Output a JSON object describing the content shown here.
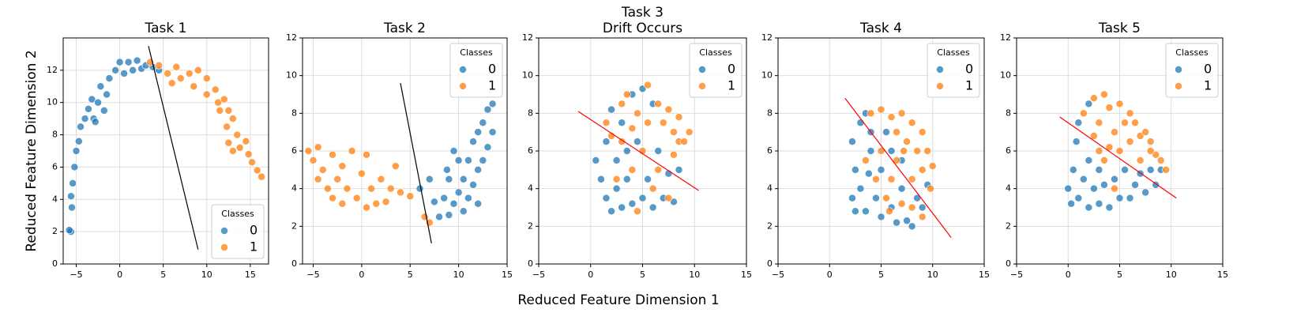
{
  "xlabel": "Reduced Feature Dimension 1",
  "ylabel": "Reduced Feature Dimension 2",
  "chart_data": [
    {
      "type": "scatter",
      "title": "Task 1",
      "legend_title": "Classes",
      "legend": "lower right",
      "grid": true,
      "xlim": [
        -6.5,
        17.1
      ],
      "ylim": [
        0,
        14
      ],
      "xticks": [
        {
          "value": -5,
          "label": "−5"
        },
        0,
        5,
        10,
        15
      ],
      "yticks": [
        0,
        2,
        4,
        6,
        8,
        10,
        12
      ],
      "series": [
        {
          "name": "0",
          "color": "#1f77b4",
          "x": [
            -5.6,
            -5.8,
            -5.5,
            -5.6,
            -5.4,
            -5.2,
            -5.0,
            -4.7,
            -4.5,
            -4.0,
            -3.6,
            -3.0,
            -3.2,
            -2.5,
            -2.2,
            -1.5,
            -1.2,
            -0.5,
            0,
            0.5,
            1,
            1.5,
            2,
            2.5,
            3,
            3.8,
            4.5,
            -2.8,
            -1.8
          ],
          "values": [
            2.0,
            2.1,
            3.5,
            4.2,
            5.0,
            6.0,
            7.0,
            7.6,
            8.5,
            9.0,
            9.6,
            9.0,
            10.2,
            10.0,
            11.0,
            10.5,
            11.5,
            12.0,
            12.5,
            11.8,
            12.5,
            12.0,
            12.6,
            12.1,
            12.3,
            12.2,
            12.0,
            8.8,
            9.5
          ]
        },
        {
          "name": "1",
          "color": "#ff7f0e",
          "x": [
            3.5,
            4.5,
            5.5,
            6.5,
            7,
            8,
            8.5,
            9,
            10,
            10,
            11,
            11.3,
            12,
            12.5,
            12.3,
            13,
            12.5,
            13.5,
            13.8,
            14.5,
            14.8,
            15.2,
            15.8,
            16.3,
            13,
            11.5,
            6
          ],
          "values": [
            12.5,
            12.3,
            11.8,
            12.2,
            11.5,
            11.8,
            11,
            12,
            11.5,
            10.5,
            10.8,
            10,
            10.2,
            9.5,
            8.5,
            9,
            7.5,
            8,
            7.2,
            7.6,
            6.8,
            6.3,
            5.8,
            5.4,
            7,
            9.5,
            11.2
          ]
        }
      ],
      "line": {
        "x": [
          3.3,
          9
        ],
        "values": [
          13.5,
          0.9
        ],
        "color": "#000000"
      }
    },
    {
      "type": "scatter",
      "title": "Task 2",
      "legend_title": "Classes",
      "legend": "upper right",
      "grid": true,
      "xlim": [
        -6.1,
        15
      ],
      "ylim": [
        0,
        12
      ],
      "xticks": [
        {
          "value": -5,
          "label": "−5"
        },
        0,
        5,
        10,
        15
      ],
      "yticks": [
        0,
        2,
        4,
        6,
        8,
        10,
        12
      ],
      "series": [
        {
          "name": "0",
          "color": "#1f77b4",
          "x": [
            7.5,
            8,
            8.5,
            9,
            9,
            9.5,
            10,
            10,
            10.5,
            10.5,
            11,
            11,
            11.5,
            11.5,
            12,
            12,
            12.5,
            12.5,
            13,
            13,
            13.5,
            13.5,
            9.5,
            8.8,
            6,
            7,
            12
          ],
          "values": [
            3.3,
            2.5,
            3.5,
            2.6,
            4.5,
            3.2,
            3.8,
            5.5,
            4.5,
            2.8,
            5.5,
            3.5,
            6.5,
            4.2,
            7,
            5.0,
            7.5,
            5.5,
            8.2,
            6.2,
            8.5,
            7.0,
            6,
            5,
            4,
            4.5,
            3.2
          ]
        },
        {
          "name": "1",
          "color": "#ff7f0e",
          "x": [
            -5.5,
            -5,
            -4.5,
            -4,
            -4.5,
            -3.5,
            -3,
            -3,
            -2.5,
            -2,
            -2,
            -1.5,
            -1,
            -0.5,
            0,
            0.5,
            0.5,
            1,
            1.5,
            2,
            2.5,
            3,
            3.5,
            4,
            5,
            6.5,
            7
          ],
          "values": [
            6.0,
            5.5,
            6.2,
            5.0,
            4.5,
            4.0,
            5.8,
            3.5,
            4.5,
            3.2,
            5.2,
            4.0,
            6.0,
            3.5,
            4.8,
            3.0,
            5.8,
            4.0,
            3.2,
            4.5,
            3.3,
            4.0,
            5.2,
            3.8,
            3.6,
            2.5,
            2.2
          ]
        }
      ],
      "line": {
        "x": [
          4,
          7.2
        ],
        "values": [
          9.6,
          1.1
        ],
        "color": "#000000"
      }
    },
    {
      "type": "scatter",
      "title": "Task 3",
      "subtitle": "Drift Occurs",
      "legend_title": "Classes",
      "legend": "upper right",
      "grid": true,
      "xlim": [
        -5,
        15
      ],
      "ylim": [
        0,
        12
      ],
      "xticks": [
        {
          "value": -5,
          "label": "−5"
        },
        0,
        5,
        10,
        15
      ],
      "yticks": [
        0,
        2,
        4,
        6,
        8,
        10,
        12
      ],
      "series": [
        {
          "name": "0",
          "color": "#1f77b4",
          "x": [
            0.5,
            1,
            1.5,
            2,
            2.5,
            3,
            1.5,
            2.5,
            3.5,
            4,
            5,
            5.5,
            6,
            7,
            7.5,
            8,
            6.5,
            4.5,
            3,
            4,
            5,
            2,
            8.5,
            3.5,
            6
          ],
          "values": [
            5.5,
            4.5,
            3.5,
            2.8,
            4.0,
            3.0,
            6.5,
            5.5,
            4.5,
            3.2,
            3.5,
            4.5,
            3.0,
            3.5,
            4.8,
            3.3,
            6,
            6.5,
            7.5,
            9,
            9.3,
            8.2,
            5,
            6.0,
            8.5
          ]
        },
        {
          "name": "1",
          "color": "#ff7f0e",
          "x": [
            1.5,
            2,
            3,
            3.5,
            4.5,
            5.5,
            5.5,
            6.5,
            7,
            7.5,
            8,
            8.5,
            9,
            9.5,
            8,
            6.5,
            5,
            4,
            3,
            2.5,
            6,
            7.5,
            4.5,
            8.5,
            4
          ],
          "values": [
            7.5,
            6.8,
            8.5,
            9.0,
            8.0,
            9.5,
            7.5,
            8.5,
            7.5,
            8.2,
            7,
            6.5,
            6.5,
            7.0,
            5.8,
            5,
            6,
            5,
            6.5,
            4.5,
            4,
            3.5,
            2.8,
            7.8,
            7.2
          ]
        }
      ],
      "line": {
        "x": [
          -1.2,
          10.4
        ],
        "values": [
          8.1,
          3.9
        ],
        "color": "#ff0000"
      }
    },
    {
      "type": "scatter",
      "title": "Task 4",
      "legend_title": "Classes",
      "legend": "upper right",
      "grid": true,
      "xlim": [
        -5,
        15
      ],
      "ylim": [
        0,
        12
      ],
      "xticks": [
        {
          "value": -5,
          "label": "−5"
        },
        0,
        5,
        10,
        15
      ],
      "yticks": [
        0,
        2,
        4,
        6,
        8,
        10,
        12
      ],
      "series": [
        {
          "name": "0",
          "color": "#1f77b4",
          "x": [
            2.2,
            2.5,
            2.2,
            3,
            3.5,
            3,
            3.5,
            4,
            4.5,
            5,
            5,
            5.5,
            6,
            6.5,
            7,
            7.5,
            8,
            8.5,
            9,
            4,
            6,
            7,
            2.5,
            9.5,
            3.8
          ],
          "values": [
            3.5,
            5,
            6.5,
            7.5,
            8.0,
            4,
            2.8,
            6,
            3.5,
            2.5,
            5.0,
            7,
            3,
            2.2,
            4,
            2.3,
            2.0,
            3.5,
            3,
            7.0,
            6,
            5.5,
            2.8,
            4.2,
            4.8
          ]
        },
        {
          "name": "1",
          "color": "#ff7f0e",
          "x": [
            4,
            5,
            6,
            6.5,
            7,
            7.5,
            8,
            8.5,
            9,
            9.5,
            10,
            9,
            8,
            7,
            6,
            5,
            4.5,
            5.5,
            6.5,
            9,
            3.5,
            8,
            9.8,
            7.2,
            5.8
          ],
          "values": [
            8,
            8.2,
            7.8,
            7,
            8,
            6.5,
            7.5,
            6,
            7,
            6,
            5.2,
            5,
            4.5,
            3.2,
            4.5,
            6,
            4.5,
            3.5,
            5.5,
            2.5,
            5.5,
            3,
            4,
            6,
            2.8
          ]
        }
      ],
      "line": {
        "x": [
          1.5,
          11.8
        ],
        "values": [
          8.8,
          1.4
        ],
        "color": "#ff0000"
      }
    },
    {
      "type": "scatter",
      "title": "Task 5",
      "legend_title": "Classes",
      "legend": "upper right",
      "grid": true,
      "xlim": [
        -5,
        15
      ],
      "ylim": [
        0,
        12
      ],
      "xticks": [
        {
          "value": -5,
          "label": "−5"
        },
        0,
        5,
        10,
        15
      ],
      "yticks": [
        0,
        2,
        4,
        6,
        8,
        10,
        12
      ],
      "series": [
        {
          "name": "0",
          "color": "#1f77b4",
          "x": [
            0,
            0.3,
            0.5,
            0.8,
            1,
            1.5,
            2,
            2,
            2.5,
            3,
            3,
            3.5,
            4,
            4.5,
            5,
            5.5,
            6,
            6.5,
            7,
            7.5,
            8,
            8.5,
            9,
            1,
            2
          ],
          "values": [
            4,
            3.2,
            5,
            6.5,
            3.5,
            4.5,
            3,
            5.5,
            4,
            3.2,
            5,
            4.2,
            3.0,
            4.5,
            3.5,
            5,
            3.5,
            4.2,
            4.8,
            3.8,
            5,
            4.2,
            5,
            7.5,
            8.5
          ]
        },
        {
          "name": "1",
          "color": "#ff7f0e",
          "x": [
            1.5,
            2.5,
            3.5,
            3,
            4,
            4.5,
            5,
            5.5,
            6,
            6,
            6.5,
            7,
            7.5,
            8,
            8.5,
            9,
            9.5,
            5,
            4,
            3,
            2.5,
            7,
            8,
            3.5,
            4.5
          ],
          "values": [
            8,
            8.8,
            9,
            7.5,
            8.3,
            7,
            8.5,
            7.5,
            8,
            6.5,
            7.5,
            6.8,
            7,
            6.5,
            5.8,
            5.5,
            5,
            6,
            6.2,
            6,
            6.8,
            5.5,
            6.0,
            5.5,
            4
          ]
        }
      ],
      "line": {
        "x": [
          -0.8,
          10.5
        ],
        "values": [
          7.8,
          3.5
        ],
        "color": "#ff0000"
      }
    }
  ]
}
